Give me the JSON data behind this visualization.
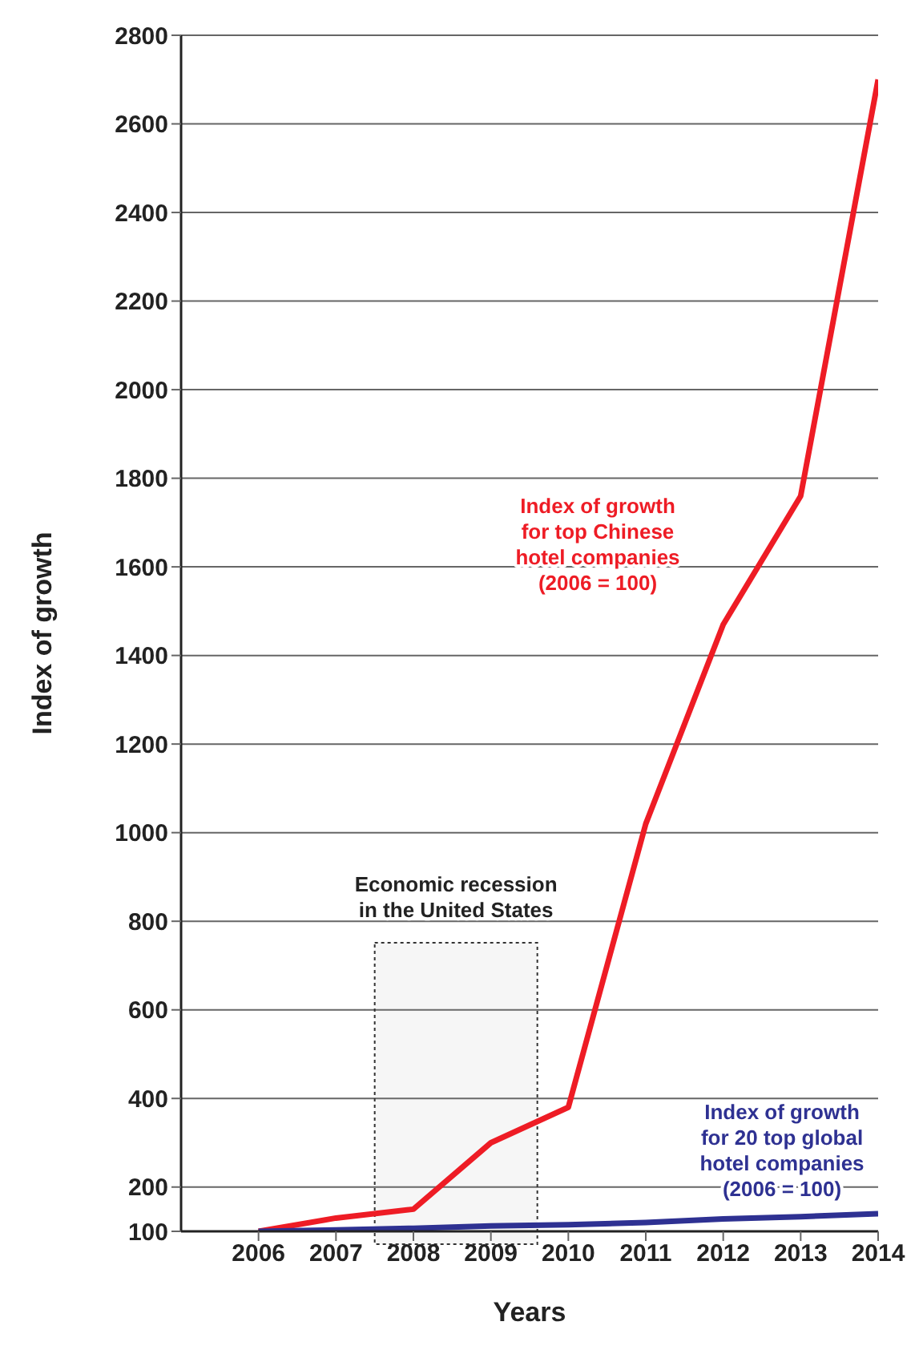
{
  "chart_data": {
    "type": "line",
    "xlabel": "Years",
    "ylabel": "Index of growth",
    "x": [
      2006,
      2007,
      2008,
      2009,
      2010,
      2011,
      2012,
      2013,
      2014
    ],
    "xlim": [
      2005,
      2014
    ],
    "xticks": [
      2006,
      2007,
      2008,
      2009,
      2010,
      2011,
      2012,
      2013,
      2014
    ],
    "ylim": [
      100,
      2800
    ],
    "yticks": [
      100,
      200,
      400,
      600,
      800,
      1000,
      1200,
      1400,
      1600,
      1800,
      2000,
      2200,
      2400,
      2600,
      2800
    ],
    "series": [
      {
        "name": "Index of growth for top Chinese hotel companies (2006 = 100)",
        "color": "#ee1c25",
        "values": [
          100,
          130,
          150,
          300,
          380,
          1020,
          1470,
          1760,
          2700
        ]
      },
      {
        "name": "Index of growth for 20 top global hotel companies (2006 = 100)",
        "color": "#2e3192",
        "values": [
          100,
          103,
          107,
          112,
          115,
          120,
          128,
          133,
          140
        ]
      }
    ],
    "bands": [
      {
        "axis": "x",
        "from": 2007.5,
        "to": 2009.6,
        "label": "Economic recession in the United States"
      }
    ],
    "grid": "y",
    "marker": "none",
    "line_style": "solid"
  }
}
